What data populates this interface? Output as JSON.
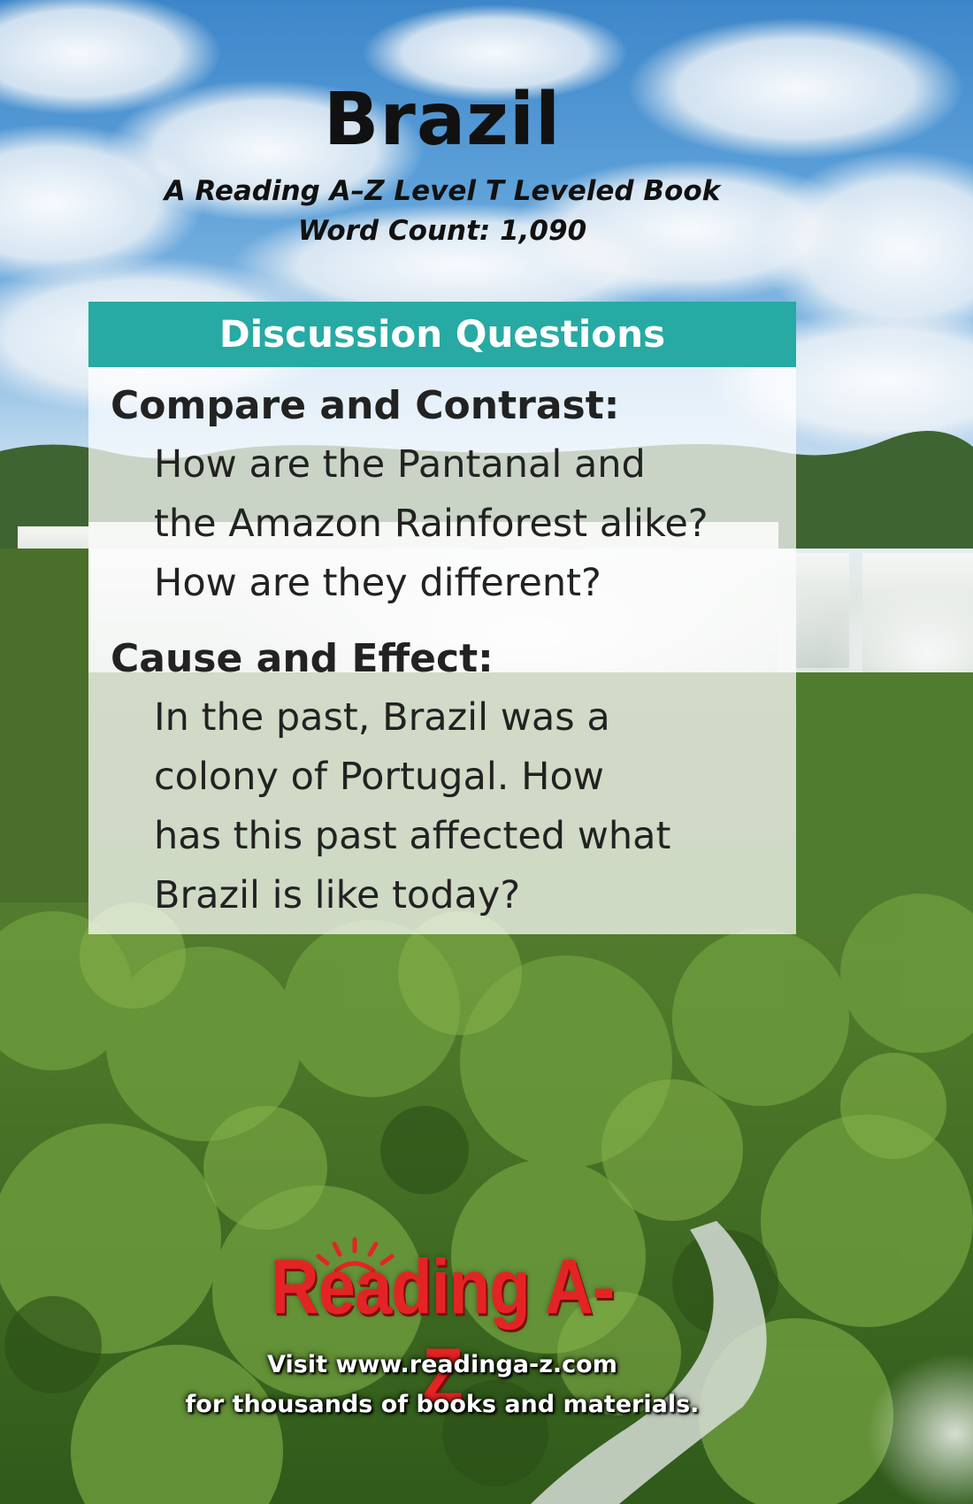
{
  "book": {
    "title": "Brazil",
    "level_line": "A Reading A–Z Level T Leveled Book",
    "word_count_line": "Word Count: 1,090"
  },
  "discussion": {
    "header": "Discussion Questions",
    "header_color": "#26aaa3",
    "questions": [
      {
        "heading": "Compare and Contrast:",
        "lines": [
          "How are the Pantanal and",
          "the Amazon Rainforest alike?",
          "How are they different?"
        ]
      },
      {
        "heading": "Cause and Effect:",
        "lines": [
          "In the past, Brazil was a",
          "colony of Portugal. How",
          "has this past affected what",
          "Brazil is like today?"
        ]
      }
    ]
  },
  "footer": {
    "logo_text": "Reading A-Z",
    "logo_color": "#e42424",
    "logo_icon": "sun-rays-icon",
    "visit_line": "Visit www.readinga-z.com",
    "materials_line": "for thousands of books and materials."
  }
}
